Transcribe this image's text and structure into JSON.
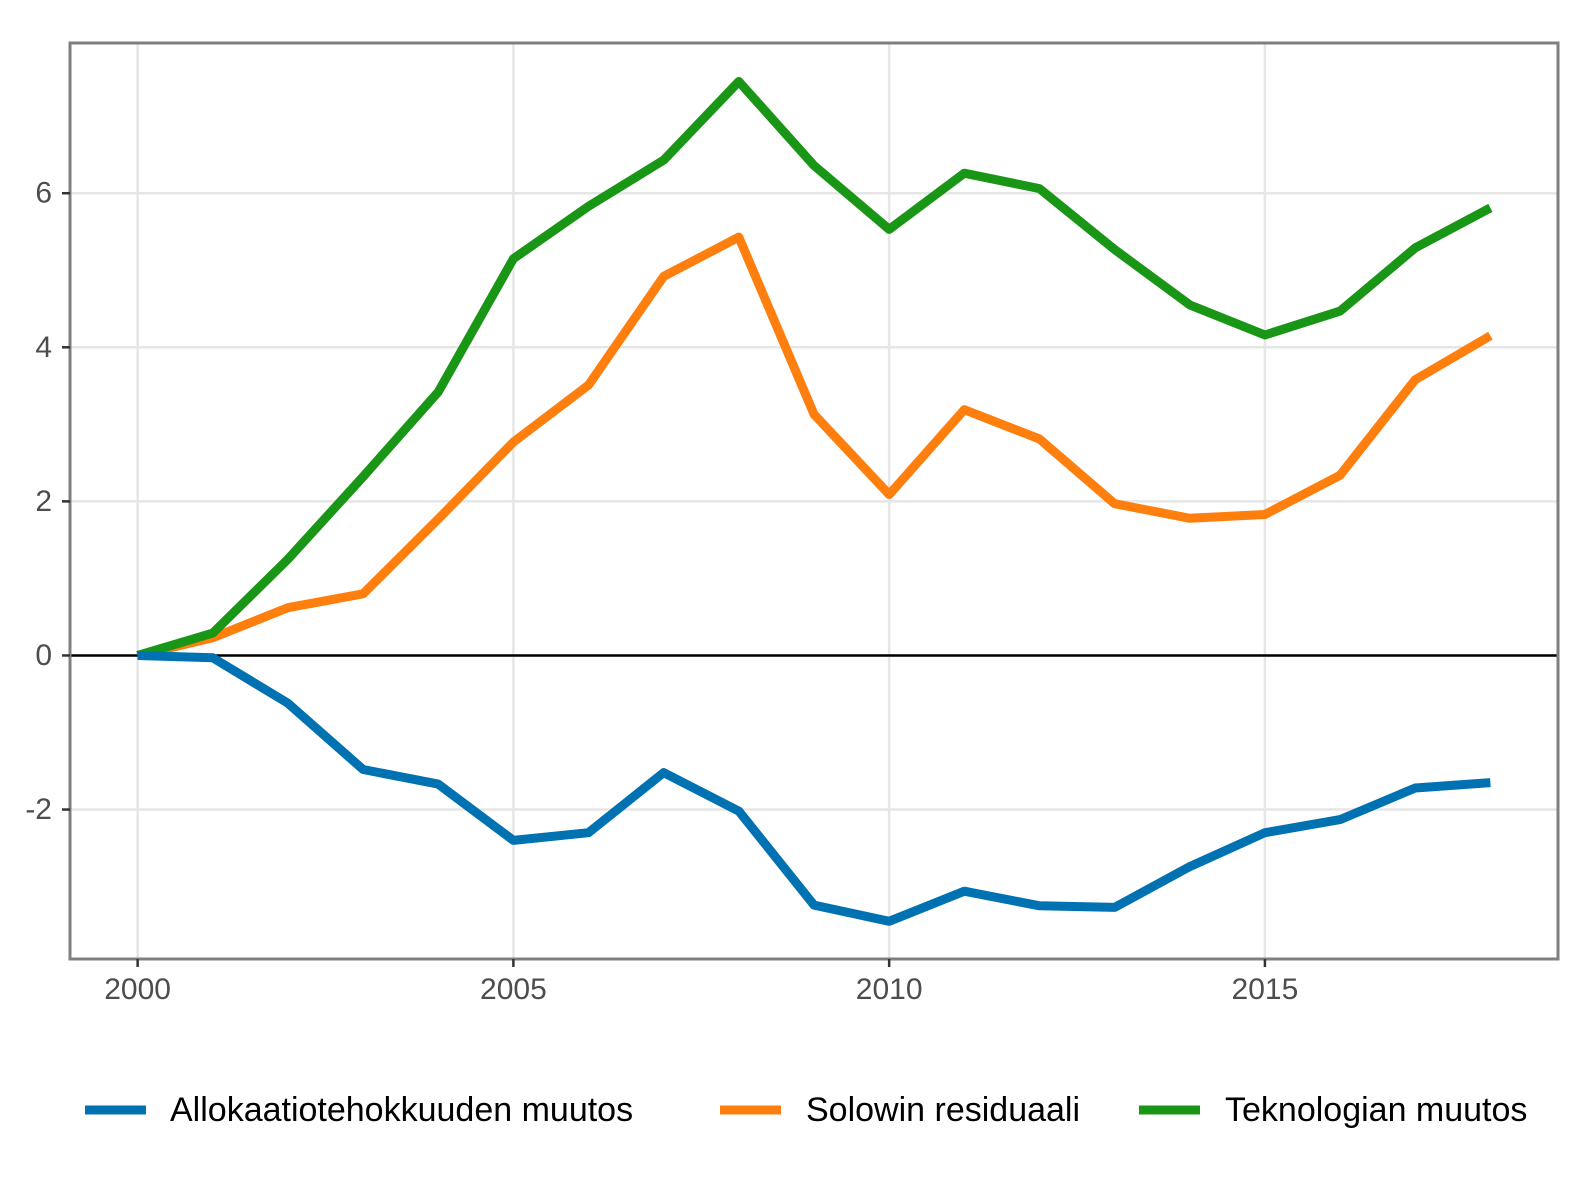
{
  "chart_data": {
    "type": "line",
    "title": "",
    "xlabel": "",
    "ylabel": "",
    "x": [
      2000,
      2001,
      2002,
      2003,
      2004,
      2005,
      2006,
      2007,
      2008,
      2009,
      2010,
      2011,
      2012,
      2013,
      2014,
      2015,
      2016,
      2017,
      2018
    ],
    "xlim": [
      1999.1,
      2018.9
    ],
    "ylim": [
      -3.94,
      7.95
    ],
    "x_ticks": [
      2000,
      2005,
      2010,
      2015
    ],
    "x_tick_labels": [
      "2000",
      "2005",
      "2010",
      "2015"
    ],
    "y_ticks": [
      -2,
      0,
      2,
      4,
      6
    ],
    "y_tick_labels": [
      "-2",
      "0",
      "2",
      "4",
      "6"
    ],
    "grid": true,
    "zero_line": true,
    "legend_position": "bottom",
    "series": [
      {
        "name": "Allokaatiotehokkuuden muutos",
        "color": "#0072b2",
        "values": [
          0.0,
          -0.03,
          -0.62,
          -1.48,
          -1.67,
          -2.4,
          -2.3,
          -1.52,
          -2.02,
          -3.24,
          -3.45,
          -3.06,
          -3.25,
          -3.27,
          -2.74,
          -2.3,
          -2.13,
          -1.72,
          -1.65
        ]
      },
      {
        "name": "Solowin residuaali",
        "color": "#ff7f0e",
        "values": [
          0.0,
          0.23,
          0.62,
          0.8,
          1.77,
          2.77,
          3.51,
          4.92,
          5.43,
          3.13,
          2.09,
          3.19,
          2.81,
          1.97,
          1.78,
          1.83,
          2.34,
          3.58,
          4.15
        ]
      },
      {
        "name": "Teknologian muutos",
        "color": "#1a9616",
        "values": [
          0.0,
          0.29,
          1.25,
          2.32,
          3.42,
          5.15,
          5.83,
          6.43,
          7.45,
          6.36,
          5.53,
          6.26,
          6.06,
          5.27,
          4.55,
          4.16,
          4.47,
          5.29,
          5.81
        ]
      }
    ]
  }
}
